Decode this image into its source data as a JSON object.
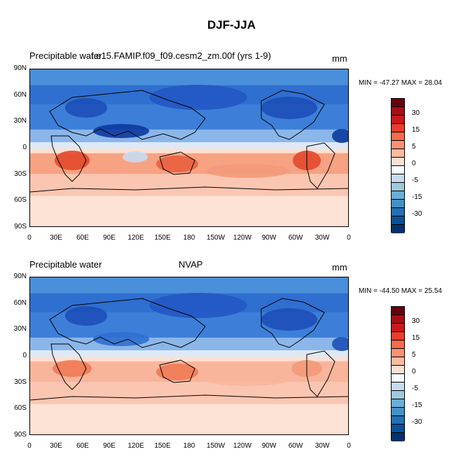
{
  "title": "DJF-JJA",
  "panels": [
    {
      "left_title": "Precipitable water",
      "center_title": "f.e15.FAMIP.f09_f09.cesm2_zm.00f (yrs 1-9)",
      "units": "mm",
      "minmax": "MIN = -47.27 MAX =  28.04"
    },
    {
      "left_title": "Precipitable water",
      "center_title": "NVAP",
      "units": "mm",
      "minmax": "MIN = -44.50 MAX =  25.54"
    }
  ],
  "lat_ticks": [
    "90N",
    "60N",
    "30N",
    "0",
    "30S",
    "60S",
    "90S"
  ],
  "lon_ticks": [
    "0",
    "30E",
    "60E",
    "90E",
    "120E",
    "150E",
    "180",
    "150W",
    "120W",
    "90W",
    "60W",
    "30W",
    "0"
  ],
  "colorbar": {
    "labels": [
      "30",
      "15",
      "5",
      "0",
      "-5",
      "-15",
      "-30"
    ],
    "colors": [
      "#67000d",
      "#a50f15",
      "#cb181d",
      "#ef3b2c",
      "#fb6a4a",
      "#fc9272",
      "#fcbba1",
      "#fee0d2",
      "#f7fbff",
      "#c6dbef",
      "#9ecae1",
      "#6baed6",
      "#4292c6",
      "#2171b5",
      "#08519c",
      "#08306b"
    ]
  }
}
